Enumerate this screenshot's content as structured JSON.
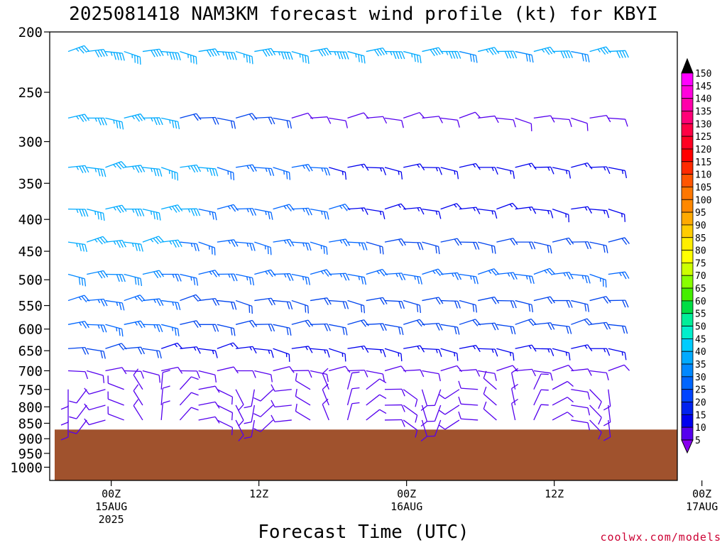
{
  "chart_data": {
    "type": "wind-barb-profile",
    "title": "2025081418 NAM3KM forecast wind profile (kt) for KBYI",
    "xlabel": "Forecast Time (UTC)",
    "ylabel": "",
    "credit": "coolwx.com/models",
    "y_ticks": [
      200,
      250,
      300,
      350,
      400,
      450,
      500,
      550,
      600,
      650,
      700,
      750,
      800,
      850,
      900,
      950,
      1000
    ],
    "ylim": [
      200,
      1050
    ],
    "y_scale": "log",
    "x_range_hours": [
      -5,
      46
    ],
    "x_ticks": [
      {
        "hour": 0,
        "lines": [
          "00Z",
          "15AUG",
          "2025"
        ]
      },
      {
        "hour": 12,
        "lines": [
          "12Z"
        ]
      },
      {
        "hour": 24,
        "lines": [
          "00Z",
          "16AUG"
        ]
      },
      {
        "hour": 36,
        "lines": [
          "12Z"
        ]
      },
      {
        "hour": 48,
        "lines": [
          "00Z",
          "17AUG"
        ]
      }
    ],
    "barb_levels": [
      215,
      275,
      330,
      385,
      435,
      490,
      540,
      590,
      645,
      700,
      750,
      795,
      840
    ],
    "barb_times_count": 30,
    "ground_pressure_hpa": 870,
    "colorbar": {
      "labels": [
        150,
        145,
        140,
        135,
        130,
        125,
        120,
        115,
        110,
        105,
        100,
        95,
        90,
        85,
        80,
        75,
        70,
        65,
        60,
        55,
        50,
        45,
        40,
        35,
        30,
        25,
        20,
        15,
        10,
        5
      ],
      "colors": [
        "#ff00ff",
        "#ff00dd",
        "#ff00aa",
        "#ff0077",
        "#ff0044",
        "#ff0022",
        "#ff0000",
        "#ff2a00",
        "#ff5500",
        "#ff7700",
        "#ff8800",
        "#ffaa00",
        "#ffcc00",
        "#ffee00",
        "#ffff00",
        "#ccff00",
        "#88ff00",
        "#44ee00",
        "#00dd44",
        "#00ee99",
        "#00eecc",
        "#00ccff",
        "#00aaff",
        "#0088ff",
        "#0066ff",
        "#0044ff",
        "#0022ee",
        "#0000ee",
        "#5500ee",
        "#8800ee"
      ]
    },
    "ground_color": "#a0522d"
  }
}
